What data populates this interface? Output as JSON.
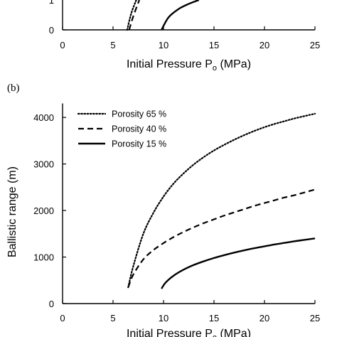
{
  "chart_data": [
    {
      "type": "line",
      "panel_label": "",
      "xlabel_main": "Initial Pressure P",
      "xlabel_sub": "o",
      "xlabel_unit": " (MPa)",
      "xlim": [
        0,
        25
      ],
      "x_ticks": [
        "0",
        "5",
        "10",
        "15",
        "20",
        "25"
      ],
      "y_ticks": [
        "0"
      ],
      "partial_top_tick": "1",
      "series": [
        {
          "name": "Porosity 65 %",
          "style": "dotted",
          "x": [
            6.4,
            6.8,
            7.3
          ],
          "y": [
            0.0,
            0.55,
            1.0
          ]
        },
        {
          "name": "Porosity 40 %",
          "style": "dashed",
          "x": [
            6.6,
            7.0,
            7.6
          ],
          "y": [
            0.0,
            0.45,
            1.0
          ]
        },
        {
          "name": "Porosity 15 %",
          "style": "solid",
          "x": [
            9.8,
            10.5,
            11.5,
            12.5,
            13.5
          ],
          "y": [
            0.0,
            0.42,
            0.7,
            0.87,
            1.0
          ]
        }
      ]
    },
    {
      "type": "line",
      "panel_label": "(b)",
      "xlabel_main": "Initial Pressure P",
      "xlabel_sub": "o",
      "xlabel_unit": " (MPa)",
      "ylabel": "Ballistic range (m)",
      "xlim": [
        0,
        25
      ],
      "ylim": [
        0,
        4300
      ],
      "x_ticks": [
        "0",
        "5",
        "10",
        "15",
        "20",
        "25"
      ],
      "y_ticks": [
        "0",
        "1000",
        "2000",
        "3000",
        "4000"
      ],
      "legend_position": "top-left",
      "series": [
        {
          "name": "Porosity 65 %",
          "style": "dotted",
          "x": [
            6.5,
            7,
            8,
            9,
            10,
            11,
            12,
            13,
            14,
            15,
            16,
            17,
            18,
            19,
            20,
            21,
            22,
            23,
            24,
            25
          ],
          "y": [
            350,
            800,
            1500,
            1950,
            2300,
            2580,
            2800,
            2990,
            3150,
            3290,
            3410,
            3520,
            3620,
            3710,
            3790,
            3860,
            3920,
            3980,
            4030,
            4080
          ]
        },
        {
          "name": "Porosity 40 %",
          "style": "dashed",
          "x": [
            6.5,
            7,
            8,
            9,
            10,
            11,
            12,
            13,
            14,
            15,
            16,
            17,
            18,
            19,
            20,
            21,
            22,
            23,
            24,
            25
          ],
          "y": [
            350,
            620,
            950,
            1150,
            1300,
            1430,
            1540,
            1640,
            1730,
            1810,
            1890,
            1960,
            2030,
            2100,
            2160,
            2220,
            2280,
            2330,
            2390,
            2450
          ]
        },
        {
          "name": "Porosity 15 %",
          "style": "solid",
          "x": [
            9.8,
            10.2,
            11,
            12,
            13,
            14,
            15,
            16,
            17,
            18,
            19,
            20,
            21,
            22,
            23,
            24,
            25
          ],
          "y": [
            320,
            450,
            600,
            730,
            830,
            910,
            980,
            1040,
            1095,
            1145,
            1190,
            1230,
            1270,
            1305,
            1340,
            1370,
            1400
          ]
        }
      ]
    }
  ]
}
